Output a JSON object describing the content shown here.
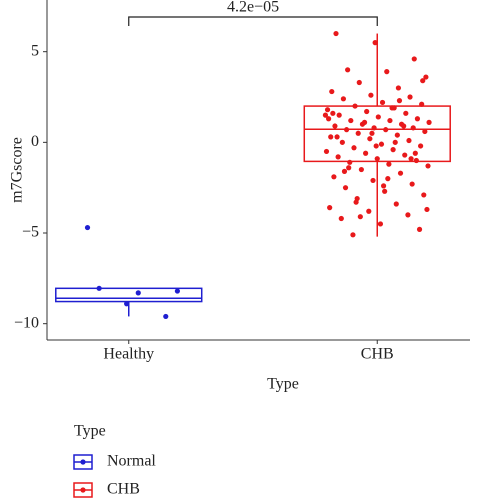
{
  "chart_data": {
    "type": "box",
    "y_label": "m7Gscore",
    "x_label": "Type",
    "legend_title": "Type",
    "categories": [
      "Healthy",
      "CHB"
    ],
    "ylim": [
      -10.9,
      7.85
    ],
    "yticks": [
      {
        "value": -10,
        "label": "−10"
      },
      {
        "value": -5,
        "label": "−5"
      },
      0,
      5
    ],
    "annotation": "4.2e−05",
    "series": [
      {
        "name": "Normal",
        "color": "#1f1fd1",
        "min": -9.6,
        "q1": -8.78,
        "median": -8.6,
        "q3": -8.05,
        "max": -8.05,
        "points": [
          -4.7,
          -8.9,
          -9.6,
          -8.05,
          -8.3,
          -8.2
        ]
      },
      {
        "name": "CHB",
        "color": "#e8191b",
        "min": -5.2,
        "q1": -1.05,
        "median": 0.72,
        "q3": 2.0,
        "max": 6.0,
        "points": [
          6.0,
          5.5,
          4.6,
          4.0,
          3.9,
          3.6,
          3.3,
          3.0,
          2.8,
          2.6,
          2.5,
          2.4,
          2.2,
          2.1,
          2.0,
          1.9,
          1.8,
          1.7,
          1.6,
          1.5,
          1.4,
          1.3,
          1.2,
          1.2,
          1.1,
          1.0,
          1.0,
          0.9,
          0.8,
          0.8,
          0.7,
          0.7,
          0.6,
          0.5,
          0.4,
          0.3,
          0.2,
          0.1,
          0.0,
          -0.1,
          -0.2,
          -0.3,
          -0.4,
          -0.5,
          -0.6,
          -0.7,
          -0.8,
          -0.9,
          -1.0,
          -1.1,
          -1.2,
          -1.3,
          -1.5,
          -1.7,
          -1.9,
          -2.1,
          -2.3,
          -2.5,
          -2.7,
          -2.9,
          -3.1,
          -3.4,
          -3.6,
          -3.8,
          -4.0,
          -4.2,
          -4.5,
          -4.8,
          -5.1,
          1.9,
          1.5,
          1.1,
          0.9,
          0.3,
          -0.2,
          -0.6,
          -1.4,
          -2.0,
          -3.7,
          -4.1,
          2.3,
          1.6,
          0.5,
          -0.9,
          -1.6,
          -2.4,
          3.4,
          -3.3,
          0.0,
          1.3
        ]
      }
    ]
  }
}
